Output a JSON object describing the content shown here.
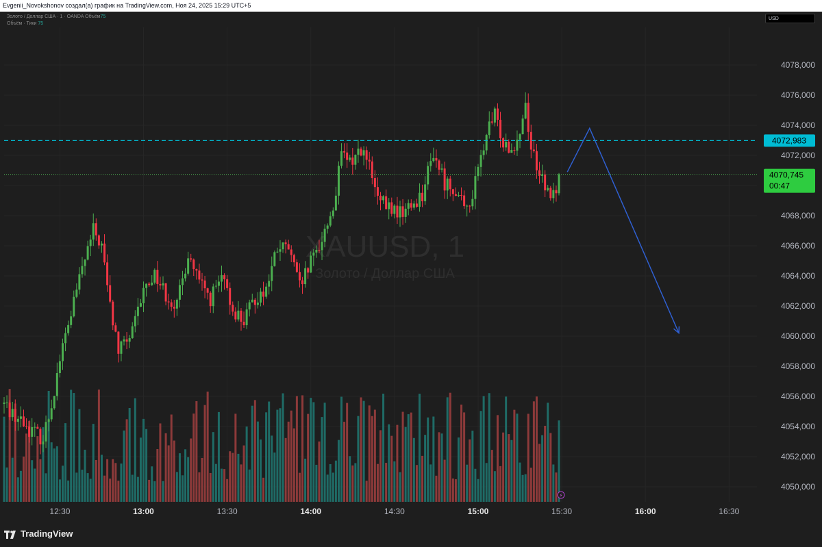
{
  "header": {
    "attribution": "Evgenii_Novokshonov создал(а) график на TradingView.com, Ноя 24, 2025 15:29 UTC+5"
  },
  "legend": {
    "line1_text": "Золото / Доллар США · 1 · OANDA",
    "line1_label": "Объём",
    "line1_value": "75",
    "line2_text": "Объём · Тики",
    "line2_value": "75"
  },
  "currency": "USD",
  "watermark": {
    "symbol": "XAUUSD, 1",
    "description": "Золото / Доллар США"
  },
  "footer": {
    "brand": "TradingView"
  },
  "colors": {
    "up": "#4caf50",
    "down": "#f23645",
    "volume_up": "#1f6b66",
    "volume_down": "#8d3a3a",
    "resistance_line": "#00bcd4",
    "price_line": "#4caf50",
    "arrow": "#2f5fd0"
  },
  "chart_data": {
    "type": "candlestick",
    "symbol": "XAUUSD",
    "timeframe": "1",
    "ylim": [
      4049000,
      4080500
    ],
    "y_ticks": [
      4050000,
      4052000,
      4054000,
      4056000,
      4058000,
      4060000,
      4062000,
      4064000,
      4066000,
      4068000,
      4070000,
      4072000,
      4074000,
      4076000,
      4078000
    ],
    "x_ticks": [
      "12:30",
      "13:00",
      "13:30",
      "14:00",
      "14:30",
      "15:00",
      "15:30",
      "16:00",
      "16:30"
    ],
    "x_tick_bold": [
      false,
      true,
      false,
      true,
      false,
      true,
      false,
      true,
      false
    ],
    "x_start": "12:10",
    "x_end": "16:40",
    "resistance_level": 4072983,
    "resistance_label": "4072,983",
    "last_price": 4070745,
    "last_price_label": "4070,745",
    "countdown": "00:47",
    "price_path": [
      [
        "12:10",
        4055500
      ],
      [
        "12:18",
        4054000
      ],
      [
        "12:24",
        4053200
      ],
      [
        "12:27",
        4055500
      ],
      [
        "12:30",
        4058500
      ],
      [
        "12:34",
        4061500
      ],
      [
        "12:38",
        4064500
      ],
      [
        "12:42",
        4067000
      ],
      [
        "12:45",
        4066000
      ],
      [
        "12:48",
        4062000
      ],
      [
        "12:51",
        4059000
      ],
      [
        "12:56",
        4060200
      ],
      [
        "13:00",
        4063000
      ],
      [
        "13:04",
        4064200
      ],
      [
        "13:08",
        4062800
      ],
      [
        "13:12",
        4062000
      ],
      [
        "13:16",
        4065500
      ],
      [
        "13:20",
        4063500
      ],
      [
        "13:24",
        4062500
      ],
      [
        "13:28",
        4063800
      ],
      [
        "13:32",
        4061800
      ],
      [
        "13:36",
        4061000
      ],
      [
        "13:40",
        4062500
      ],
      [
        "13:44",
        4063200
      ],
      [
        "13:48",
        4065800
      ],
      [
        "13:52",
        4065800
      ],
      [
        "13:56",
        4063200
      ],
      [
        "14:00",
        4064800
      ],
      [
        "14:04",
        4066500
      ],
      [
        "14:08",
        4068500
      ],
      [
        "14:11",
        4072000
      ],
      [
        "14:14",
        4071500
      ],
      [
        "14:18",
        4072500
      ],
      [
        "14:21",
        4071200
      ],
      [
        "14:24",
        4069000
      ],
      [
        "14:28",
        4068500
      ],
      [
        "14:32",
        4068200
      ],
      [
        "14:36",
        4068600
      ],
      [
        "14:40",
        4069500
      ],
      [
        "14:44",
        4072200
      ],
      [
        "14:48",
        4070200
      ],
      [
        "14:52",
        4069800
      ],
      [
        "14:55",
        4068300
      ],
      [
        "14:58",
        4069400
      ],
      [
        "15:00",
        4071000
      ],
      [
        "15:03",
        4073400
      ],
      [
        "15:06",
        4074600
      ],
      [
        "15:09",
        4073000
      ],
      [
        "15:12",
        4072500
      ],
      [
        "15:15",
        4073600
      ],
      [
        "15:17",
        4075500
      ],
      [
        "15:19",
        4072500
      ],
      [
        "15:21",
        4071500
      ],
      [
        "15:24",
        4069600
      ],
      [
        "15:27",
        4069300
      ],
      [
        "15:29",
        4070745
      ]
    ],
    "arrow_path": [
      [
        "15:32",
        4070900
      ],
      [
        "15:40",
        4073800
      ],
      [
        "16:12",
        4060200
      ]
    ],
    "volume_scale_max": 75
  }
}
